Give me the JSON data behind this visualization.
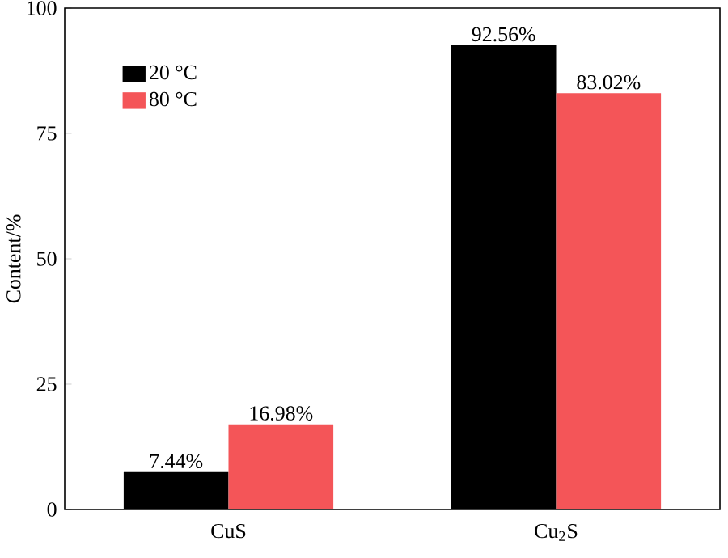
{
  "chart_data": {
    "type": "bar",
    "ylabel": "Content/%",
    "categories": [
      "CuS",
      "Cu$_{2}$S"
    ],
    "series": [
      {
        "name": "20 °C",
        "color": "#000000",
        "values": [
          7.44,
          92.56
        ],
        "value_labels": [
          "7.44%",
          "92.56%"
        ]
      },
      {
        "name": "80 °C",
        "color": "#f45558",
        "values": [
          16.98,
          83.02
        ],
        "value_labels": [
          "16.98%",
          "83.02%"
        ]
      }
    ],
    "ylim": [
      0,
      100
    ],
    "yticks": [
      0,
      25,
      50,
      75,
      100
    ],
    "legend": "top left"
  }
}
